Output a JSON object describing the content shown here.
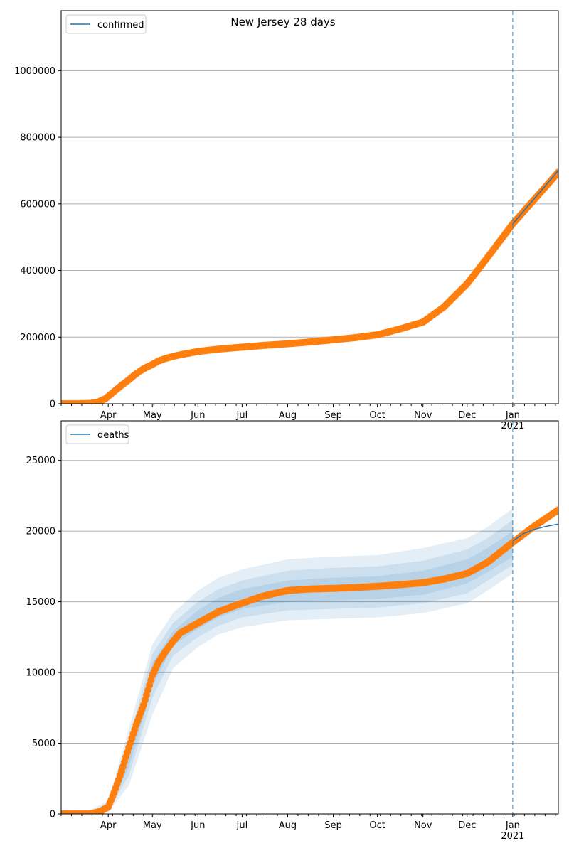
{
  "chart_data": [
    {
      "type": "line",
      "title": "New Jersey 28 days",
      "xlabel": "",
      "ylabel": "",
      "ylim": [
        0,
        1180000
      ],
      "y_ticks": [
        0,
        200000,
        400000,
        600000,
        800000,
        1000000
      ],
      "grid": "y",
      "legend_placement": "top-left",
      "legend_entries": [
        "confirmed"
      ],
      "forecast_start": "2021-01-01",
      "x_ticks": [
        {
          "date": "2020-04-01",
          "label": "Apr"
        },
        {
          "date": "2020-05-01",
          "label": "May"
        },
        {
          "date": "2020-06-01",
          "label": "Jun"
        },
        {
          "date": "2020-07-01",
          "label": "Jul"
        },
        {
          "date": "2020-08-01",
          "label": "Aug"
        },
        {
          "date": "2020-09-01",
          "label": "Sep"
        },
        {
          "date": "2020-10-01",
          "label": "Oct"
        },
        {
          "date": "2020-11-01",
          "label": "Nov"
        },
        {
          "date": "2020-12-01",
          "label": "Dec"
        },
        {
          "date": "2021-01-01",
          "label": "Jan\n2021"
        }
      ],
      "series": [
        {
          "name": "confirmed",
          "kind": "model",
          "color": "#1f77b4",
          "x": [
            "2021-01-01",
            "2021-02-01"
          ],
          "values": [
            540000,
            700000
          ]
        },
        {
          "name": "observed",
          "kind": "points",
          "color": "#ff7f0e",
          "x": [
            "2020-02-29",
            "2020-03-10",
            "2020-03-20",
            "2020-03-25",
            "2020-03-30",
            "2020-04-01",
            "2020-04-05",
            "2020-04-10",
            "2020-04-15",
            "2020-04-20",
            "2020-04-25",
            "2020-05-01",
            "2020-05-05",
            "2020-05-10",
            "2020-05-15",
            "2020-05-20",
            "2020-06-01",
            "2020-06-15",
            "2020-07-01",
            "2020-07-15",
            "2020-08-01",
            "2020-08-15",
            "2020-09-01",
            "2020-09-15",
            "2020-10-01",
            "2020-10-15",
            "2020-11-01",
            "2020-11-15",
            "2020-12-01",
            "2020-12-15",
            "2021-01-01",
            "2021-01-15",
            "2021-02-01"
          ],
          "values": [
            0,
            0,
            1000,
            5000,
            15000,
            22000,
            37000,
            55000,
            72000,
            90000,
            105000,
            118000,
            128000,
            136000,
            142000,
            147000,
            157000,
            164000,
            170000,
            175000,
            180000,
            185000,
            192000,
            198000,
            207000,
            223000,
            245000,
            290000,
            360000,
            440000,
            540000,
            610000,
            695000
          ]
        }
      ]
    },
    {
      "type": "line",
      "title": "",
      "xlabel": "",
      "ylabel": "",
      "ylim": [
        0,
        27800
      ],
      "y_ticks": [
        0,
        5000,
        10000,
        15000,
        20000,
        25000
      ],
      "grid": "y",
      "legend_placement": "top-left",
      "legend_entries": [
        "deaths"
      ],
      "forecast_start": "2021-01-01",
      "x_ticks": [
        {
          "date": "2020-04-01",
          "label": "Apr"
        },
        {
          "date": "2020-05-01",
          "label": "May"
        },
        {
          "date": "2020-06-01",
          "label": "Jun"
        },
        {
          "date": "2020-07-01",
          "label": "Jul"
        },
        {
          "date": "2020-08-01",
          "label": "Aug"
        },
        {
          "date": "2020-09-01",
          "label": "Sep"
        },
        {
          "date": "2020-10-01",
          "label": "Oct"
        },
        {
          "date": "2020-11-01",
          "label": "Nov"
        },
        {
          "date": "2020-12-01",
          "label": "Dec"
        },
        {
          "date": "2021-01-01",
          "label": "Jan\n2021"
        }
      ],
      "series": [
        {
          "name": "deaths",
          "kind": "model",
          "color": "#1f77b4",
          "x": [
            "2021-01-01",
            "2021-01-08",
            "2021-01-15",
            "2021-01-22",
            "2021-02-01"
          ],
          "values": [
            19300,
            19800,
            20100,
            20300,
            20500
          ]
        },
        {
          "name": "observed",
          "kind": "points",
          "color": "#ff7f0e",
          "x": [
            "2020-02-29",
            "2020-03-20",
            "2020-03-27",
            "2020-04-01",
            "2020-04-05",
            "2020-04-10",
            "2020-04-15",
            "2020-04-20",
            "2020-04-25",
            "2020-05-01",
            "2020-05-05",
            "2020-05-10",
            "2020-05-15",
            "2020-05-20",
            "2020-06-01",
            "2020-06-15",
            "2020-07-01",
            "2020-07-15",
            "2020-08-01",
            "2020-08-15",
            "2020-09-01",
            "2020-09-15",
            "2020-10-01",
            "2020-10-15",
            "2020-11-01",
            "2020-11-15",
            "2020-12-01",
            "2020-12-15",
            "2021-01-01",
            "2021-01-15",
            "2021-02-01"
          ],
          "values": [
            0,
            0,
            200,
            500,
            1500,
            3000,
            4700,
            6300,
            7700,
            9800,
            10700,
            11500,
            12200,
            12800,
            13500,
            14300,
            14900,
            15400,
            15800,
            15900,
            15950,
            16000,
            16100,
            16200,
            16350,
            16600,
            17000,
            17800,
            19200,
            20300,
            21500
          ]
        },
        {
          "name": "band-outer",
          "kind": "band",
          "color": "#1f77b4",
          "x": [
            "2020-03-20",
            "2020-04-01",
            "2020-04-15",
            "2020-05-01",
            "2020-05-15",
            "2020-06-01",
            "2020-06-15",
            "2020-07-01",
            "2020-08-01",
            "2020-09-01",
            "2020-10-01",
            "2020-11-01",
            "2020-12-01",
            "2020-12-15",
            "2021-01-01"
          ],
          "lower": [
            0,
            100,
            2000,
            7000,
            10300,
            11800,
            12700,
            13200,
            13700,
            13800,
            13900,
            14200,
            14900,
            15800,
            17000
          ],
          "upper": [
            300,
            900,
            6000,
            12000,
            14200,
            15800,
            16700,
            17300,
            18000,
            18200,
            18300,
            18800,
            19500,
            20300,
            21600
          ]
        },
        {
          "name": "band-middle",
          "kind": "band",
          "color": "#1f77b4",
          "x": [
            "2020-03-20",
            "2020-04-01",
            "2020-04-15",
            "2020-05-01",
            "2020-05-15",
            "2020-06-01",
            "2020-06-15",
            "2020-07-01",
            "2020-08-01",
            "2020-09-01",
            "2020-10-01",
            "2020-11-01",
            "2020-12-01",
            "2020-12-15",
            "2021-01-01"
          ],
          "lower": [
            0,
            200,
            2700,
            8200,
            11200,
            12500,
            13300,
            13900,
            14400,
            14500,
            14600,
            14900,
            15600,
            16500,
            17600
          ],
          "upper": [
            200,
            700,
            5200,
            11300,
            13500,
            15000,
            15900,
            16500,
            17200,
            17400,
            17500,
            17900,
            18700,
            19500,
            20800
          ]
        },
        {
          "name": "band-inner",
          "kind": "band",
          "color": "#1f77b4",
          "x": [
            "2020-03-20",
            "2020-04-01",
            "2020-04-15",
            "2020-05-01",
            "2020-05-15",
            "2020-06-01",
            "2020-06-15",
            "2020-07-01",
            "2020-08-01",
            "2020-09-01",
            "2020-10-01",
            "2020-11-01",
            "2020-12-01",
            "2020-12-15",
            "2021-01-01"
          ],
          "lower": [
            0,
            300,
            3300,
            9000,
            11900,
            13100,
            13900,
            14500,
            15000,
            15100,
            15200,
            15500,
            16300,
            17100,
            18200
          ],
          "upper": [
            100,
            600,
            4600,
            10700,
            12900,
            14400,
            15300,
            15900,
            16500,
            16700,
            16800,
            17200,
            18000,
            18800,
            20000
          ]
        }
      ]
    }
  ]
}
